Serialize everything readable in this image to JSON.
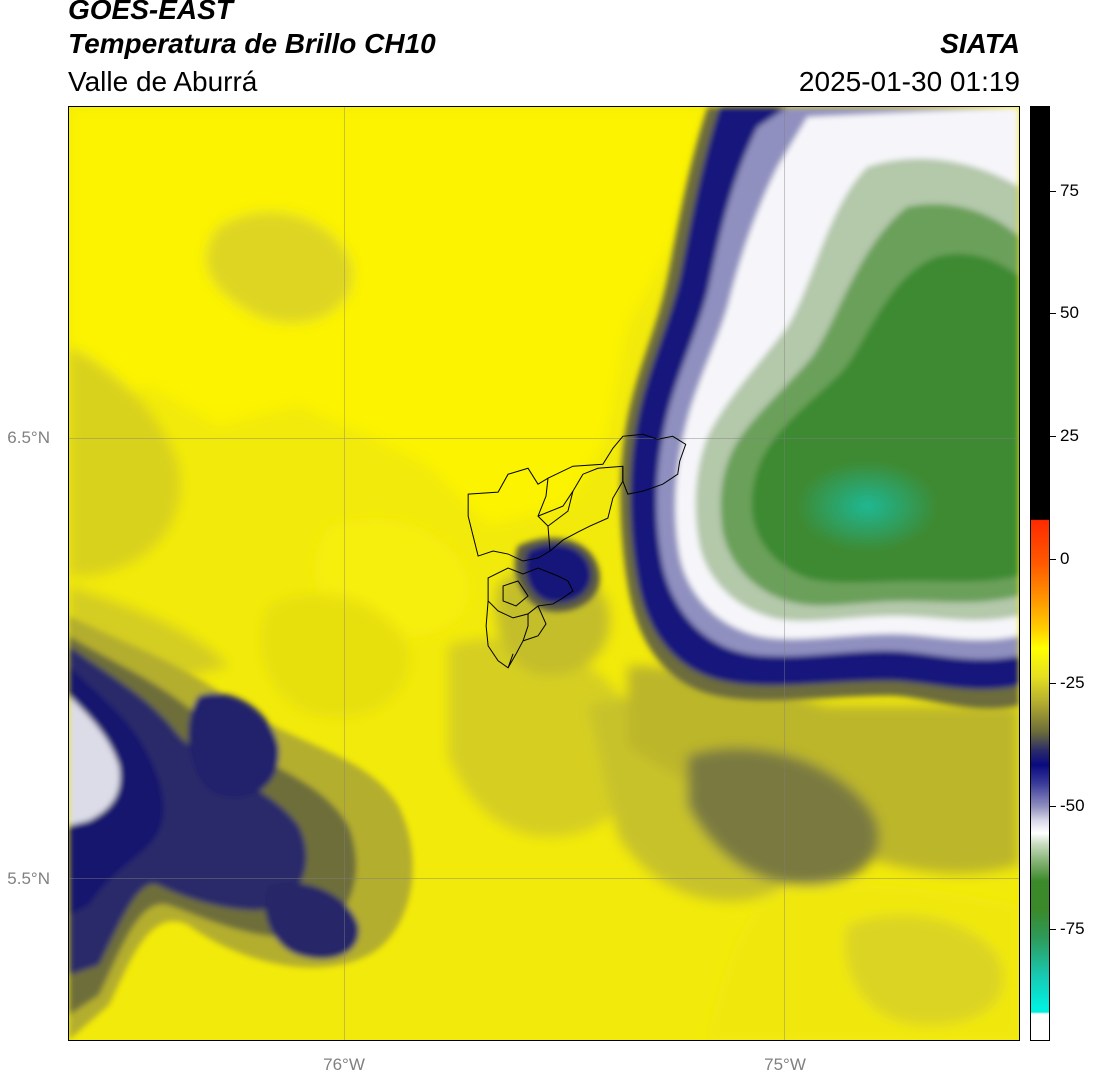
{
  "header": {
    "satellite": "GOES-EAST",
    "product": "Temperatura de Brillo CH10",
    "region": "Valle de Aburrá",
    "organization": "SIATA",
    "timestamp": "2025-01-30 01:19"
  },
  "axes": {
    "lat_ticks": [
      "6.5°N",
      "5.5°N"
    ],
    "lon_ticks": [
      "76°W",
      "75°W"
    ]
  },
  "colorbar": {
    "ticks": [
      "75",
      "50",
      "25",
      "0",
      "-25",
      "-50",
      "-75"
    ],
    "colors": {
      "black": "#000000",
      "red": "#ff2a00",
      "orange": "#ff8c00",
      "yellow": "#ffff00",
      "olive": "#6b6b3a",
      "navy": "#0a0a80",
      "white": "#ffffff",
      "green": "#3a8a2a",
      "cyan": "#00e5d8"
    }
  },
  "map": {
    "colors": {
      "clear_yellow": "#fcf000",
      "dim_yellow": "#e6df14",
      "olive": "#b8b428",
      "dark_olive": "#6d6d3c",
      "cloud_navy": "#141478",
      "cloud_white": "#f4f4f8",
      "cloud_green": "#3d8a33",
      "cloud_teal": "#20b08a",
      "grid": "#808080",
      "border": "#000000"
    }
  }
}
